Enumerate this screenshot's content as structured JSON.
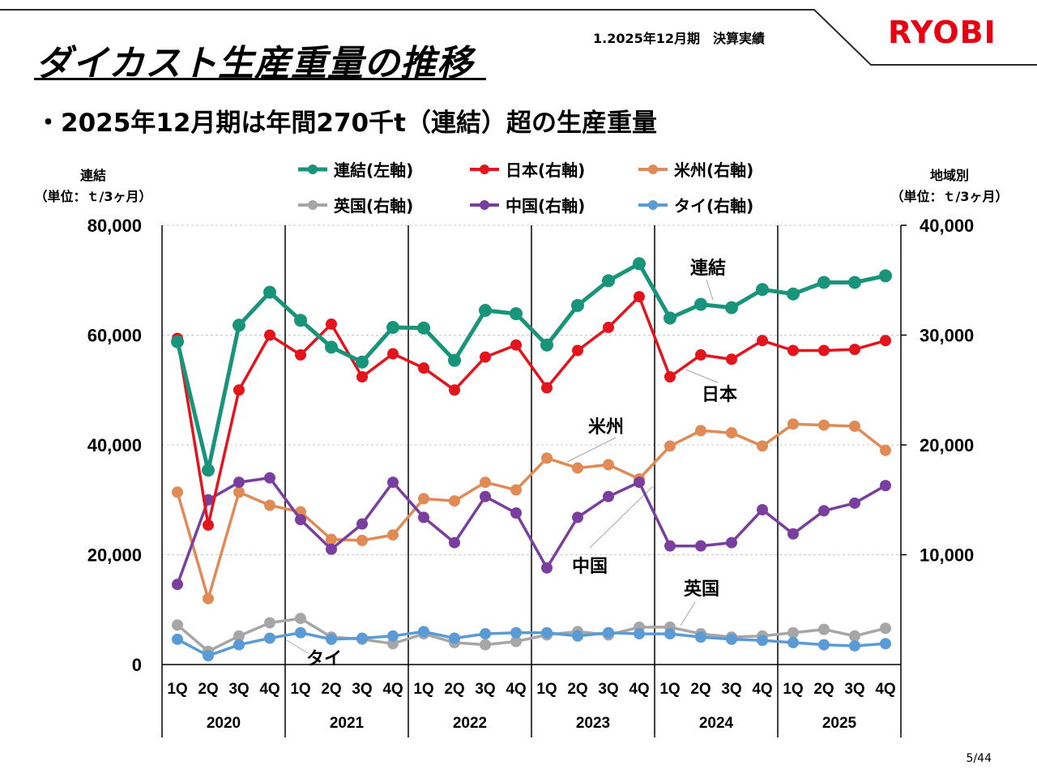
{
  "header": {
    "title": "ダイカスト生産重量の推移",
    "period": "1.2025年12月期　決算実績",
    "logo": "RYOBI",
    "subtitle": "・2025年12月期は年間270千t（連結）超の生産重量"
  },
  "axis_captions": {
    "left_line1": "連結",
    "left_line2": "（単位：ｔ/3ヶ月）",
    "right_line1": "地域別",
    "right_line2": "（単位：ｔ/3ヶ月）"
  },
  "page_number": "5/44",
  "colors": {
    "consolidated": "#17947a",
    "japan": "#e3141b",
    "americas": "#e08a55",
    "uk": "#a6a6a6",
    "china": "#7a3f9e",
    "thailand": "#5b9bd5"
  },
  "chart_data": {
    "type": "line",
    "title": "",
    "years": [
      "2020",
      "2021",
      "2022",
      "2023",
      "2024",
      "2025"
    ],
    "quarters": [
      "1Q",
      "2Q",
      "3Q",
      "4Q"
    ],
    "left_axis": {
      "ylim": [
        0,
        80000
      ],
      "ticks": [
        0,
        20000,
        40000,
        60000,
        80000
      ],
      "tick_labels": [
        "0",
        "20,000",
        "40,000",
        "60,000",
        "80,000"
      ]
    },
    "right_axis": {
      "ylim": [
        0,
        40000
      ],
      "ticks": [
        10000,
        20000,
        30000,
        40000
      ],
      "tick_labels": [
        "10,000",
        "20,000",
        "30,000",
        "40,000"
      ]
    },
    "series": [
      {
        "key": "consolidated",
        "name": "連結(左軸)",
        "label": "連結",
        "axis": "left",
        "values": [
          58800,
          35400,
          61800,
          67800,
          62700,
          57800,
          55100,
          61400,
          61300,
          55400,
          64500,
          63900,
          58200,
          65400,
          69900,
          73000,
          63100,
          65600,
          65000,
          68300,
          67500,
          69600,
          69600,
          70800
        ]
      },
      {
        "key": "japan",
        "name": "日本(右軸)",
        "label": "日本",
        "axis": "right",
        "values": [
          29700,
          12700,
          25000,
          30000,
          28200,
          31000,
          26200,
          28300,
          27000,
          25000,
          28000,
          29100,
          25200,
          28600,
          30700,
          33500,
          26200,
          28200,
          27800,
          29500,
          28600,
          28600,
          28700,
          29500
        ]
      },
      {
        "key": "americas",
        "name": "米州(右軸)",
        "label": "米州",
        "axis": "right",
        "values": [
          15700,
          6000,
          15700,
          14500,
          13900,
          11400,
          11300,
          11800,
          15100,
          14900,
          16600,
          15900,
          18800,
          17900,
          18200,
          16900,
          19900,
          21300,
          21100,
          19900,
          21900,
          21800,
          21700,
          19500
        ]
      },
      {
        "key": "uk",
        "name": "英国(右軸)",
        "label": "英国",
        "axis": "right",
        "values": [
          3600,
          1200,
          2600,
          3800,
          4200,
          2500,
          2300,
          1900,
          2800,
          2000,
          1800,
          2100,
          2700,
          3000,
          2700,
          3400,
          3400,
          2800,
          2500,
          2600,
          2900,
          3200,
          2600,
          3300
        ]
      },
      {
        "key": "china",
        "name": "中国(右軸)",
        "label": "中国",
        "axis": "right",
        "values": [
          7300,
          15000,
          16600,
          17000,
          13200,
          10500,
          12800,
          16600,
          13400,
          11100,
          15300,
          13800,
          8800,
          13400,
          15300,
          16600,
          10800,
          10800,
          11100,
          14100,
          11900,
          14000,
          14700,
          16300
        ]
      },
      {
        "key": "thailand",
        "name": "タイ(右軸)",
        "label": "タイ",
        "axis": "right",
        "values": [
          2300,
          800,
          1800,
          2400,
          2900,
          2300,
          2400,
          2600,
          3000,
          2400,
          2800,
          2900,
          2900,
          2600,
          2900,
          2800,
          2800,
          2500,
          2300,
          2200,
          2000,
          1800,
          1700,
          1900
        ]
      }
    ]
  }
}
